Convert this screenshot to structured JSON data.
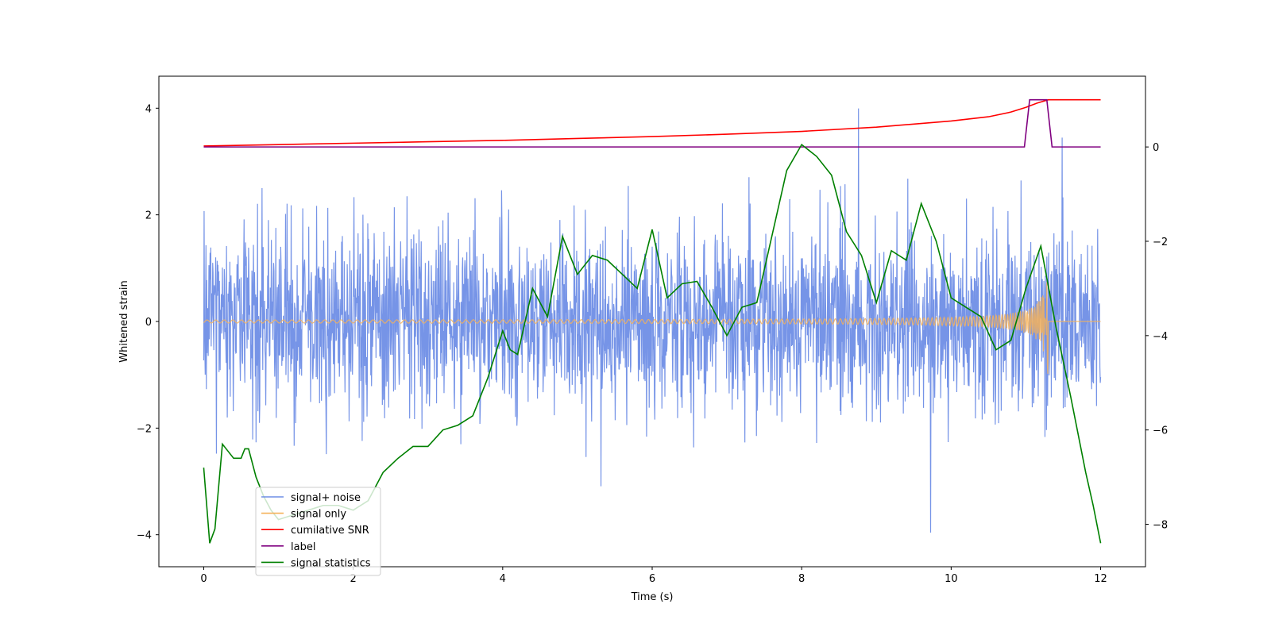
{
  "chart_data": {
    "type": "line",
    "title": "",
    "xlabel": "Time (s)",
    "ylabel": "Whitened strain",
    "xlim": [
      -0.6,
      12.6
    ],
    "ylim": [
      -4.6,
      4.6
    ],
    "y2lim": [
      -8.9,
      1.5
    ],
    "xticks": [
      0,
      2,
      4,
      6,
      8,
      10,
      12
    ],
    "yticks": [
      -4,
      -2,
      0,
      2,
      4
    ],
    "y2ticks": [
      -8,
      -6,
      -4,
      -2,
      0
    ],
    "grid": false,
    "legend_position": "lower-left",
    "series": [
      {
        "name": "signal+ noise",
        "axis": "left",
        "color": "#6f8ee6",
        "kind": "noise",
        "duration": 12,
        "samples": 2400,
        "sigma": 0.85
      },
      {
        "name": "signal only",
        "axis": "left",
        "color": "#f5b25a",
        "kind": "chirp",
        "t_end": 11.3,
        "start_amplitude": 0.02,
        "end_amplitude": 1.2
      },
      {
        "name": "cumilative SNR",
        "axis": "right",
        "x": [
          0,
          1,
          2,
          3,
          4,
          5,
          6,
          7,
          8,
          9,
          10,
          10.5,
          10.8,
          11.0,
          11.15,
          11.3,
          12
        ],
        "y": [
          0.02,
          0.05,
          0.08,
          0.11,
          0.14,
          0.18,
          0.22,
          0.27,
          0.33,
          0.42,
          0.55,
          0.64,
          0.74,
          0.84,
          0.93,
          1.0,
          1.0
        ],
        "color": "#ff0000"
      },
      {
        "name": "label",
        "axis": "right",
        "x": [
          0,
          10.98,
          11.05,
          11.28,
          11.35,
          12
        ],
        "y": [
          0,
          0,
          1.0,
          1.0,
          0,
          0
        ],
        "color": "#800080"
      },
      {
        "name": "signal statistics",
        "axis": "right",
        "x": [
          0,
          0.08,
          0.15,
          0.2,
          0.25,
          0.3,
          0.4,
          0.5,
          0.55,
          0.6,
          0.7,
          0.8,
          0.9,
          1.0,
          1.2,
          1.4,
          1.6,
          1.8,
          2.0,
          2.2,
          2.4,
          2.6,
          2.8,
          3.0,
          3.2,
          3.4,
          3.6,
          3.8,
          3.9,
          4.0,
          4.1,
          4.2,
          4.4,
          4.6,
          4.8,
          5.0,
          5.2,
          5.4,
          5.6,
          5.8,
          6.0,
          6.2,
          6.4,
          6.6,
          6.8,
          7.0,
          7.2,
          7.4,
          7.6,
          7.8,
          8.0,
          8.2,
          8.4,
          8.6,
          8.8,
          9.0,
          9.2,
          9.4,
          9.6,
          9.8,
          10.0,
          10.2,
          10.4,
          10.6,
          10.8,
          11.0,
          11.2,
          11.4,
          11.6,
          11.8,
          11.9,
          12.0
        ],
        "y": [
          -6.8,
          -8.4,
          -8.1,
          -7.2,
          -6.3,
          -6.4,
          -6.6,
          -6.6,
          -6.4,
          -6.4,
          -7.0,
          -7.4,
          -7.7,
          -7.9,
          -7.8,
          -7.7,
          -7.6,
          -7.6,
          -7.7,
          -7.5,
          -6.9,
          -6.6,
          -6.35,
          -6.35,
          -6.0,
          -5.9,
          -5.7,
          -4.9,
          -4.4,
          -3.9,
          -4.3,
          -4.4,
          -3.0,
          -3.6,
          -1.9,
          -2.7,
          -2.3,
          -2.4,
          -2.7,
          -3.0,
          -1.75,
          -3.2,
          -2.9,
          -2.85,
          -3.4,
          -4.0,
          -3.4,
          -3.3,
          -1.9,
          -0.5,
          0.05,
          -0.2,
          -0.6,
          -1.8,
          -2.3,
          -3.3,
          -2.2,
          -2.4,
          -1.2,
          -2.0,
          -3.2,
          -3.4,
          -3.6,
          -4.3,
          -4.1,
          -3.0,
          -2.1,
          -3.8,
          -5.3,
          -6.9,
          -7.6,
          -8.4
        ],
        "color": "#008000"
      }
    ]
  }
}
